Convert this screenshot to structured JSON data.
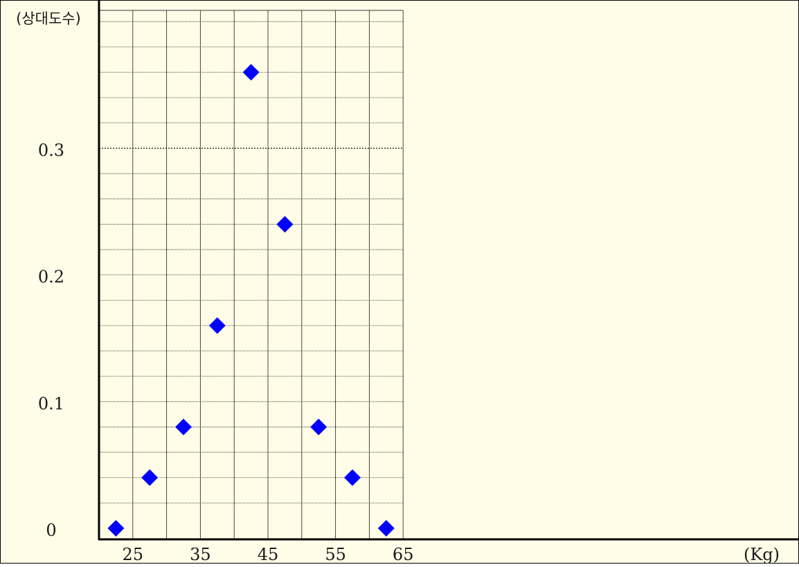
{
  "chart_data": {
    "type": "scatter",
    "title": "",
    "xlabel": "",
    "ylabel": "(상대도수)",
    "x_unit_label": "(Kg)",
    "x": [
      22.5,
      27.5,
      32.5,
      37.5,
      42.5,
      47.5,
      52.5,
      57.5,
      62.5
    ],
    "y": [
      0,
      0.04,
      0.08,
      0.16,
      0.36,
      0.24,
      0.08,
      0.04,
      0
    ],
    "xlim": [
      20,
      70
    ],
    "ylim": [
      0,
      0.4
    ],
    "x_ticks": [
      25,
      35,
      45,
      55,
      65
    ],
    "x_tick_labels": [
      "25",
      "35",
      "45",
      "55",
      "65"
    ],
    "y_ticks": [
      0,
      0.1,
      0.2,
      0.3
    ],
    "y_tick_labels": [
      "0",
      "0.1",
      "0.2",
      "0.3"
    ],
    "grid": true,
    "background_color": "#fffde7",
    "marker_color": "#0000ff",
    "marker_shape": "diamond"
  }
}
